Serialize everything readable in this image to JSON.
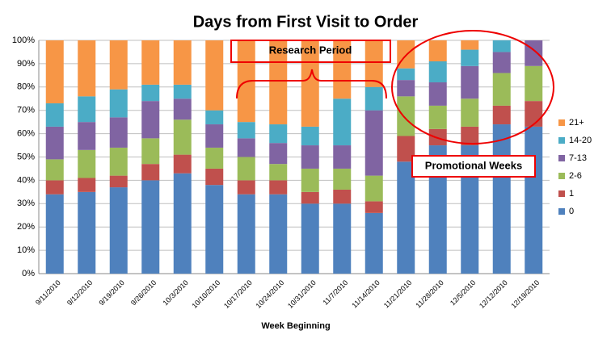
{
  "chart_data": {
    "type": "stacked_bar_100",
    "title": "Days from First Visit to Order",
    "x_label": "Week Beginning",
    "annotations": [
      "Research Period",
      "Promotional Weeks"
    ],
    "categories": [
      "9/11/2010",
      "9/12/2010",
      "9/19/2010",
      "9/26/2010",
      "10/3/2010",
      "10/10/2010",
      "10/17/2010",
      "10/24/2010",
      "10/31/2010",
      "11/7/2010",
      "11/14/2010",
      "11/21/2010",
      "11/28/2010",
      "12/5/2010",
      "12/12/2010",
      "12/19/2010"
    ],
    "series": [
      {
        "name": "0",
        "color": "#4f81bd",
        "values": [
          34,
          35,
          37,
          40,
          43,
          38,
          34,
          34,
          30,
          30,
          26,
          48,
          55,
          55,
          64,
          63
        ]
      },
      {
        "name": "1",
        "color": "#c0504d",
        "values": [
          6,
          6,
          5,
          7,
          8,
          7,
          6,
          6,
          5,
          6,
          5,
          11,
          7,
          8,
          8,
          11
        ]
      },
      {
        "name": "2-6",
        "color": "#9bbb59",
        "values": [
          9,
          12,
          12,
          11,
          15,
          9,
          10,
          7,
          10,
          9,
          11,
          17,
          10,
          12,
          14,
          15
        ]
      },
      {
        "name": "7-13",
        "color": "#8064a2",
        "values": [
          14,
          12,
          13,
          16,
          9,
          10,
          8,
          9,
          10,
          10,
          28,
          7,
          10,
          14,
          9,
          11
        ]
      },
      {
        "name": "14-20",
        "color": "#4bacc6",
        "values": [
          10,
          11,
          12,
          7,
          6,
          6,
          7,
          8,
          8,
          20,
          10,
          5,
          9,
          7,
          5,
          0
        ]
      },
      {
        "name": "21+",
        "color": "#f79646",
        "values": [
          27,
          24,
          21,
          19,
          19,
          30,
          35,
          36,
          37,
          25,
          20,
          12,
          9,
          4,
          0,
          0
        ]
      }
    ],
    "ylim": [
      0,
      100
    ],
    "yticks": [
      {
        "value": 0,
        "label": "0%"
      },
      {
        "value": 10,
        "label": "10%"
      },
      {
        "value": 20,
        "label": "20%"
      },
      {
        "value": 30,
        "label": "30%"
      },
      {
        "value": 40,
        "label": "40%"
      },
      {
        "value": 50,
        "label": "50%"
      },
      {
        "value": 60,
        "label": "60%"
      },
      {
        "value": 70,
        "label": "70%"
      },
      {
        "value": 80,
        "label": "80%"
      },
      {
        "value": 90,
        "label": "90%"
      },
      {
        "value": 100,
        "label": "100%"
      }
    ],
    "grid": true,
    "legend": "right"
  }
}
